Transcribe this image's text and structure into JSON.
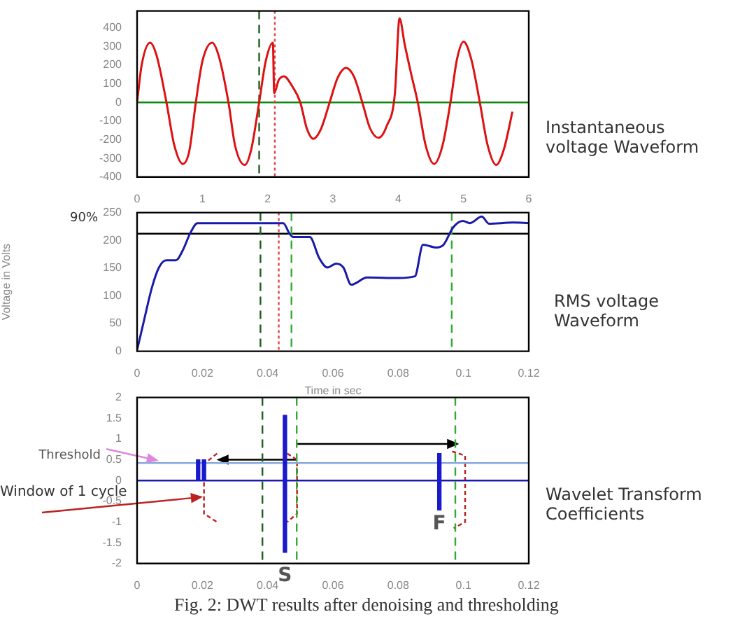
{
  "chart_data": [
    {
      "type": "line",
      "xlim": [
        0,
        6
      ],
      "xticks": [
        0,
        1,
        2,
        3,
        4,
        5,
        6
      ],
      "ylim": [
        -400,
        490
      ],
      "yticks": [
        -400,
        -300,
        -200,
        -100,
        0,
        100,
        200,
        300,
        400
      ],
      "grid": false,
      "legend": false,
      "marker": "none",
      "line_style": "solid",
      "series": [
        {
          "color": "#dd1111",
          "x": [
            0,
            0.07,
            0.2,
            0.3,
            0.45,
            0.57,
            0.7,
            0.8,
            0.9,
            1.0,
            1.15,
            1.25,
            1.4,
            1.5,
            1.65,
            1.75,
            1.87,
            1.97,
            2.08,
            2.1,
            2.17,
            2.25,
            2.37,
            2.5,
            2.6,
            2.7,
            2.82,
            2.95,
            3.07,
            3.2,
            3.32,
            3.45,
            3.57,
            3.7,
            3.82,
            3.95,
            4.02,
            4.1,
            4.2,
            4.3,
            4.42,
            4.55,
            4.68,
            4.8,
            4.9,
            5.0,
            5.12,
            5.25,
            5.37,
            5.5,
            5.62,
            5.75
          ],
          "values": [
            0,
            200,
            320,
            250,
            0,
            -230,
            -330,
            -260,
            0,
            220,
            320,
            250,
            0,
            -230,
            -335,
            -250,
            0,
            220,
            320,
            50,
            120,
            140,
            90,
            0,
            -140,
            -195,
            -140,
            0,
            130,
            185,
            140,
            0,
            -140,
            -190,
            -130,
            50,
            450,
            310,
            150,
            0,
            -230,
            -330,
            -230,
            0,
            230,
            325,
            230,
            0,
            -230,
            -335,
            -250,
            -50
          ]
        }
      ],
      "ref_lines": [
        {
          "axis": "y",
          "value": 0,
          "color": "#118811",
          "line_style": "solid"
        },
        {
          "axis": "x",
          "value": 1.87,
          "color": "#1e5e1e",
          "line_style": "dashed"
        },
        {
          "axis": "x",
          "value": 2.11,
          "color": "#dd4444",
          "line_style": "dotted"
        }
      ],
      "annotations": [
        "Instantaneous voltage Waveform"
      ]
    },
    {
      "type": "line",
      "xlim": [
        0,
        0.12
      ],
      "xticks": [
        0,
        0.02,
        0.04,
        0.06,
        0.08,
        0.1,
        0.12
      ],
      "ylim": [
        0,
        250
      ],
      "yticks": [
        0,
        50,
        100,
        150,
        200,
        250
      ],
      "xlabel": "Time in sec",
      "ylabel": "Voltage in Volts",
      "grid": false,
      "legend": false,
      "marker": "none",
      "line_style": "solid",
      "series": [
        {
          "color": "#1a1aaa",
          "x": [
            0,
            0.0023,
            0.0045,
            0.0067,
            0.0089,
            0.0119,
            0.014,
            0.0163,
            0.0185,
            0.0448,
            0.0466,
            0.0478,
            0.0529,
            0.0558,
            0.0583,
            0.061,
            0.0632,
            0.0656,
            0.0705,
            0.08,
            0.0851,
            0.0876,
            0.0917,
            0.0939,
            0.0968,
            0.0998,
            0.102,
            0.1056,
            0.1078,
            0.1152,
            0.12
          ],
          "values": [
            2,
            60,
            114,
            151,
            164,
            164,
            182,
            213,
            231,
            231,
            213,
            206,
            206,
            168,
            151,
            158,
            151,
            120,
            133,
            132,
            135,
            192,
            187,
            192,
            223,
            235,
            231,
            243,
            230,
            232,
            231
          ]
        }
      ],
      "ref_lines": [
        {
          "axis": "y",
          "value": 212,
          "color": "#000000",
          "line_style": "solid"
        },
        {
          "axis": "x",
          "value": 0.0378,
          "color": "#1e5e1e",
          "line_style": "dashed"
        },
        {
          "axis": "x",
          "value": 0.0434,
          "color": "#dd4444",
          "line_style": "dotted"
        },
        {
          "axis": "x",
          "value": 0.0473,
          "color": "#33aa33",
          "line_style": "dashed"
        },
        {
          "axis": "x",
          "value": 0.0964,
          "color": "#33aa33",
          "line_style": "dashed"
        }
      ],
      "annotations": [
        "RMS voltage Waveform",
        "90%"
      ]
    },
    {
      "type": "bar",
      "xlim": [
        0,
        0.12
      ],
      "xticks": [
        0,
        0.02,
        0.04,
        0.06,
        0.08,
        0.1,
        0.12
      ],
      "ylim": [
        -2,
        2
      ],
      "yticks": [
        -2,
        -1.5,
        -1,
        -0.5,
        0,
        0.5,
        1,
        1.5,
        2
      ],
      "grid": false,
      "legend": false,
      "series": [
        {
          "color": "#1a1acc",
          "x": [
            0.0187,
            0.0205,
            0.0453,
            0.0926
          ],
          "base": [
            0,
            0,
            -1.73,
            -0.71
          ],
          "values": [
            0.5,
            0.5,
            3.3,
            1.36
          ]
        }
      ],
      "ref_lines": [
        {
          "axis": "y",
          "value": 0.42,
          "label": "Threshold",
          "color": "#88aadd",
          "line_style": "solid"
        },
        {
          "axis": "y",
          "value": 0,
          "color": "#1a1aaa",
          "line_style": "solid"
        },
        {
          "axis": "x",
          "value": 0.0384,
          "color": "#1e5e1e",
          "line_style": "dashed"
        },
        {
          "axis": "x",
          "value": 0.0489,
          "color": "#33aa33",
          "line_style": "dashed"
        },
        {
          "axis": "x",
          "value": 0.0975,
          "color": "#33aa33",
          "line_style": "dashed"
        }
      ],
      "annotations": [
        "Wavelet Transform Coefficients",
        "Window of 1 cycle",
        {
          "text": "S",
          "x": 0.0453,
          "y": -1.73
        },
        {
          "text": "F",
          "x": 0.0926,
          "y": -0.71
        },
        "Fig. 2: DWT results after denoising and thresholding"
      ]
    }
  ]
}
